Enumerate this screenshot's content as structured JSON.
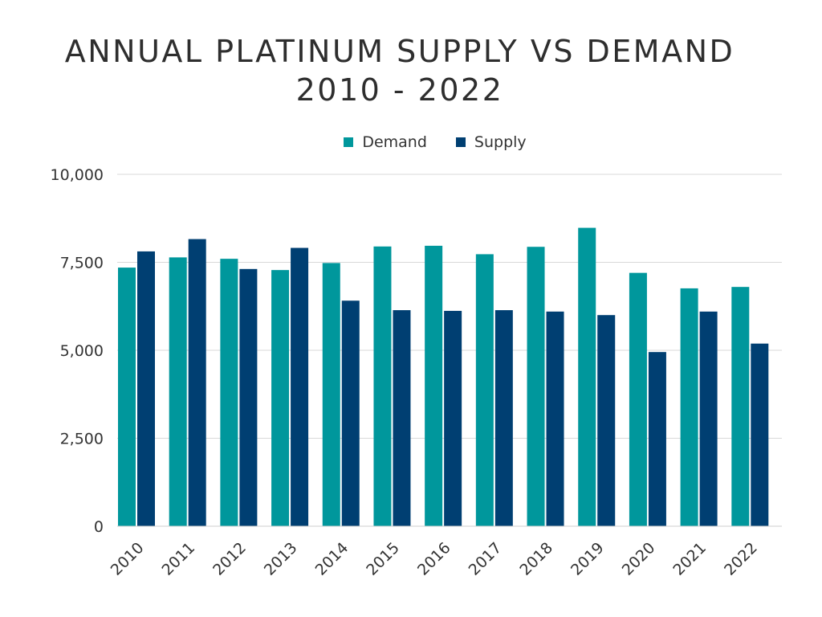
{
  "title_lines": [
    "ANNUAL PLATINUM SUPPLY VS DEMAND",
    "2010 - 2022"
  ],
  "legend": [
    {
      "label": "Demand",
      "color": "#00979c"
    },
    {
      "label": "Supply",
      "color": "#003f72"
    }
  ],
  "chart_data": {
    "type": "bar",
    "title": "ANNUAL PLATINUM SUPPLY VS DEMAND 2010 - 2022",
    "categories": [
      "2010",
      "2011",
      "2012",
      "2013",
      "2014",
      "2015",
      "2016",
      "2017",
      "2018",
      "2019",
      "2020",
      "2021",
      "2022"
    ],
    "series": [
      {
        "name": "Demand",
        "color": "#00979c",
        "values": [
          7350,
          7640,
          7600,
          7280,
          7480,
          7950,
          7970,
          7730,
          7940,
          8480,
          7200,
          6760,
          6800
        ]
      },
      {
        "name": "Supply",
        "color": "#003f72",
        "values": [
          7810,
          8160,
          7310,
          7910,
          6410,
          6140,
          6120,
          6140,
          6100,
          6000,
          4950,
          6100,
          5190
        ]
      }
    ],
    "yticks": [
      "0",
      "2,500",
      "5,000",
      "7,500",
      "10,000"
    ],
    "ylim": [
      0,
      10000
    ],
    "grid": true,
    "legend_position": "top"
  }
}
